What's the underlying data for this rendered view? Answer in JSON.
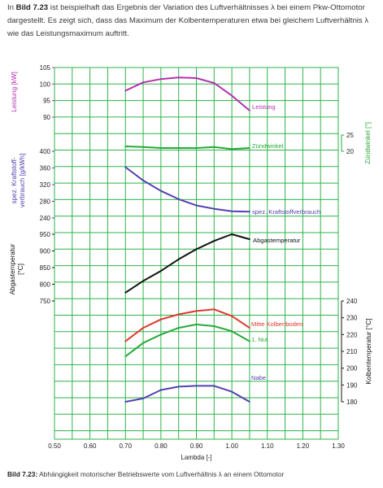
{
  "intro": {
    "prefix": "In ",
    "ref": "Bild 7.23",
    "text": " ist beispielhaft das Ergebnis der Variation des Luftverhältnisses λ bei einem Pkw-Ottomotor dargestellt. Es zeigt sich, dass das Maximum der Kolbentemperaturen etwa bei gleichem Luftverhältnis λ wie das Leistungsmaximum auftritt."
  },
  "caption": {
    "ref": "Bild 7.23:",
    "text": " Abhängigkeit motorischer Betriebswerte vom Luftverhältnis λ an einem Ottomotor"
  },
  "colors": {
    "grid": "#2db34a",
    "purple": "#b530b0",
    "green": "#2aa83a",
    "blue": "#5540b0",
    "black": "#111111",
    "red": "#e0382c"
  },
  "chart_data": {
    "type": "line",
    "x": {
      "label": "Lambda [-]",
      "range": [
        0.5,
        1.3
      ],
      "ticks": [
        "0.50",
        "0.60",
        "0.70",
        "0.80",
        "0.90",
        "1.00",
        "1.10",
        "1.20",
        "1.30"
      ]
    },
    "grid": true,
    "panels": [
      {
        "id": "leistung",
        "axis_label": "Leistung [kW]",
        "axis_side": "left",
        "range": [
          90,
          105
        ],
        "ticks": [
          90,
          95,
          100,
          105
        ],
        "color": "#b530b0",
        "series": [
          {
            "name": "Leistung",
            "color": "#b530b0",
            "x": [
              0.7,
              0.75,
              0.8,
              0.85,
              0.9,
              0.95,
              1.0,
              1.05
            ],
            "y": [
              98.0,
              100.5,
              101.5,
              102.0,
              101.8,
              100.3,
              96.5,
              92.0
            ]
          }
        ]
      },
      {
        "id": "zuendwinkel",
        "axis_label": "Zündwinkel [°]",
        "axis_side": "right",
        "range": [
          20,
          25
        ],
        "ticks": [
          20,
          25
        ],
        "color": "#2aa83a",
        "series": [
          {
            "name": "Zündwinkel",
            "color": "#2aa83a",
            "x": [
              0.7,
              0.75,
              0.8,
              0.85,
              0.9,
              0.95,
              1.0,
              1.05
            ],
            "y": [
              21.5,
              21.3,
              21.0,
              21.0,
              21.0,
              21.3,
              20.7,
              21.0
            ]
          }
        ]
      },
      {
        "id": "verbrauch",
        "axis_label": "spez. Kraftstoff-verbrauch [g/kWh]",
        "axis_side": "left",
        "range": [
          240,
          400
        ],
        "ticks": [
          240,
          280,
          320,
          360,
          400
        ],
        "color": "#5540b0",
        "series": [
          {
            "name": "spez. Kraftstoffverbrauch",
            "color": "#5540b0",
            "x": [
              0.7,
              0.75,
              0.8,
              0.85,
              0.9,
              0.95,
              1.0,
              1.05
            ],
            "y": [
              362,
              330,
              305,
              285,
              270,
              262,
              256,
              255
            ]
          }
        ]
      },
      {
        "id": "abgas",
        "axis_label": "Abgastemperatur [°C]",
        "axis_side": "left",
        "range": [
          750,
          950
        ],
        "ticks": [
          750,
          800,
          850,
          900,
          950
        ],
        "color": "#111111",
        "series": [
          {
            "name": "Abgastemperatur",
            "color": "#111111",
            "x": [
              0.7,
              0.75,
              0.8,
              0.85,
              0.9,
              0.95,
              1.0,
              1.05
            ],
            "y": [
              775,
              810,
              840,
              875,
              905,
              930,
              950,
              935
            ]
          }
        ]
      },
      {
        "id": "kolben",
        "axis_label": "Kolbentemperatur [°C]",
        "axis_side": "right",
        "range": [
          180,
          240
        ],
        "ticks": [
          180,
          190,
          200,
          210,
          220,
          230,
          240
        ],
        "color": "#111111",
        "series": [
          {
            "name": "Mitte Kolbenboden",
            "color": "#e0382c",
            "x": [
              0.7,
              0.75,
              0.8,
              0.85,
              0.9,
              0.95,
              1.0,
              1.05
            ],
            "y": [
              216,
              224,
              229,
              232,
              234,
              235,
              231,
              224
            ]
          },
          {
            "name": "1. Nut",
            "color": "#2aa83a",
            "x": [
              0.7,
              0.75,
              0.8,
              0.85,
              0.9,
              0.95,
              1.0,
              1.05
            ],
            "y": [
              207,
              215,
              220,
              224,
              226,
              225,
              222,
              216
            ]
          },
          {
            "name": "Nabe",
            "color": "#5540b0",
            "x": [
              0.7,
              0.75,
              0.8,
              0.85,
              0.9,
              0.95,
              1.0,
              1.05
            ],
            "y": [
              180,
              182,
              187,
              189,
              189.5,
              189.5,
              186,
              180
            ]
          }
        ]
      }
    ]
  }
}
